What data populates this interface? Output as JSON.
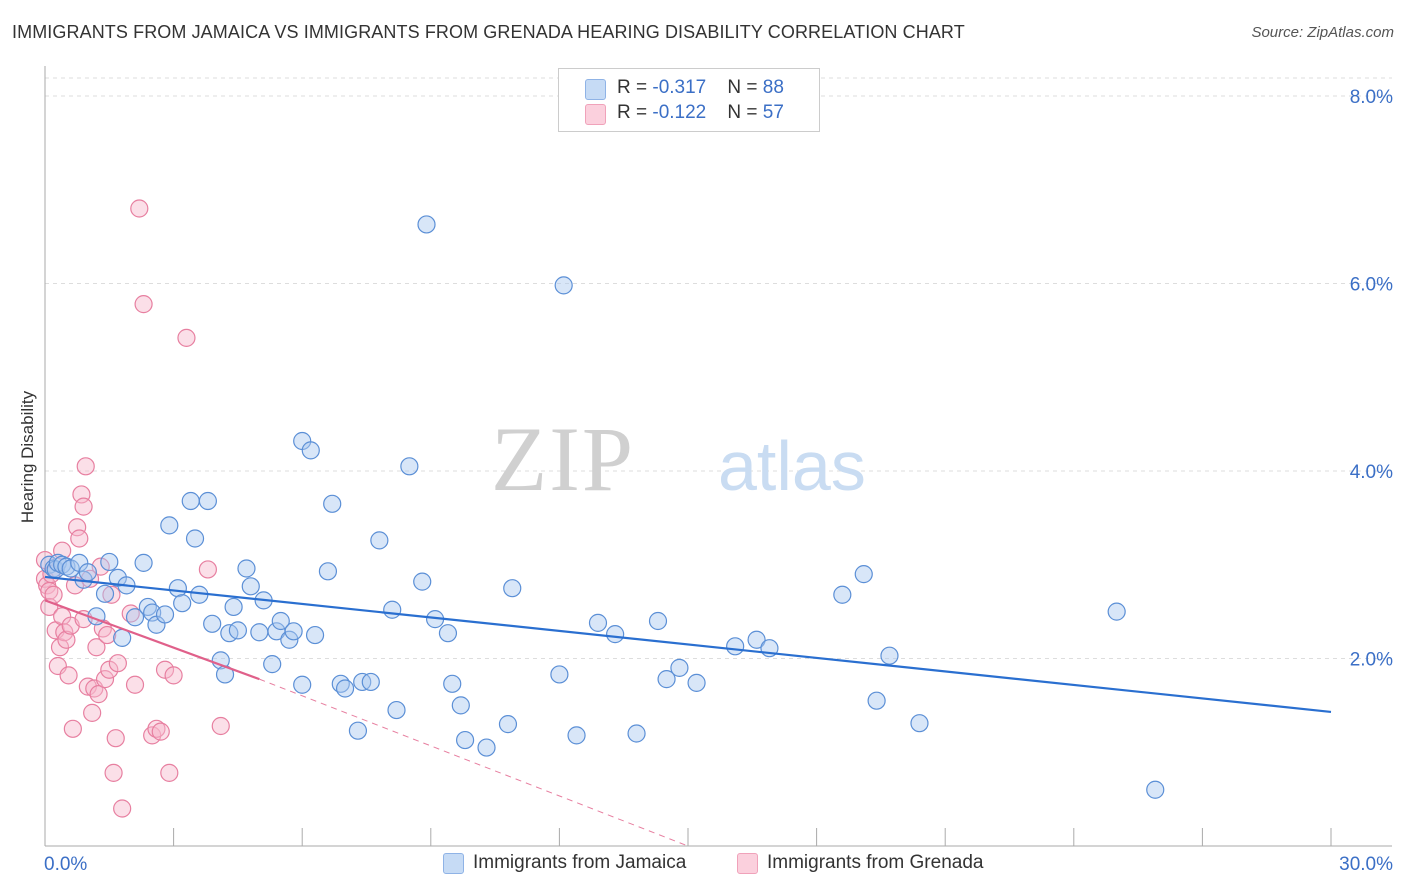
{
  "header": {
    "title": "IMMIGRANTS FROM JAMAICA VS IMMIGRANTS FROM GRENADA HEARING DISABILITY CORRELATION CHART",
    "source": "Source: ZipAtlas.com"
  },
  "watermark": {
    "part1": "ZIP",
    "part2": "atlas"
  },
  "legend": {
    "rows": [
      {
        "r_label": "R = ",
        "r_value": "-0.317",
        "n_label": "N = ",
        "n_value": "88",
        "color": "#a9c8f0"
      },
      {
        "r_label": "R = ",
        "r_value": "-0.122",
        "n_label": "N = ",
        "n_value": "57",
        "color": "#f7b9cb"
      }
    ]
  },
  "bottom_legend": {
    "jamaica": "Immigrants from Jamaica",
    "grenada": "Immigrants from Grenada"
  },
  "colors": {
    "jamaica_fill": "#a9c8f0",
    "jamaica_stroke": "#5b8fd6",
    "jamaica_line": "#2a6fd0",
    "grenada_fill": "#f7b9cb",
    "grenada_stroke": "#e77fa0",
    "grenada_line": "#e0608a",
    "tick_label": "#3b6fc6",
    "grid": "#dddddd"
  },
  "chart_data": {
    "type": "scatter",
    "title": "IMMIGRANTS FROM JAMAICA VS IMMIGRANTS FROM GRENADA HEARING DISABILITY CORRELATION CHART",
    "xlabel": "",
    "ylabel": "Hearing Disability",
    "xlim": [
      0,
      30
    ],
    "ylim": [
      0,
      8.0
    ],
    "x_tick_labels": [
      "0.0%",
      "30.0%"
    ],
    "y_ticks": [
      2.0,
      4.0,
      6.0,
      8.0
    ],
    "y_tick_labels": [
      "2.0%",
      "4.0%",
      "6.0%",
      "8.0%"
    ],
    "grid": "horizontal dashed",
    "legend_position": "top-center",
    "series": [
      {
        "name": "Immigrants from Jamaica",
        "R": -0.317,
        "N": 88,
        "trend": {
          "x": [
            0.0,
            30.0
          ],
          "y": [
            2.87,
            1.43
          ]
        },
        "points": [
          [
            0.1,
            3.0
          ],
          [
            0.2,
            2.96
          ],
          [
            0.25,
            2.95
          ],
          [
            0.3,
            3.02
          ],
          [
            0.4,
            3.0
          ],
          [
            0.5,
            2.98
          ],
          [
            0.6,
            2.96
          ],
          [
            0.8,
            3.02
          ],
          [
            0.9,
            2.84
          ],
          [
            1.0,
            2.92
          ],
          [
            1.2,
            2.45
          ],
          [
            1.4,
            2.69
          ],
          [
            1.5,
            3.03
          ],
          [
            1.7,
            2.86
          ],
          [
            1.8,
            2.22
          ],
          [
            1.9,
            2.78
          ],
          [
            2.1,
            2.44
          ],
          [
            2.3,
            3.02
          ],
          [
            2.4,
            2.55
          ],
          [
            2.5,
            2.49
          ],
          [
            2.6,
            2.36
          ],
          [
            2.8,
            2.47
          ],
          [
            2.9,
            3.42
          ],
          [
            3.1,
            2.75
          ],
          [
            3.2,
            2.59
          ],
          [
            3.4,
            3.68
          ],
          [
            3.5,
            3.28
          ],
          [
            3.6,
            2.68
          ],
          [
            3.8,
            3.68
          ],
          [
            3.9,
            2.37
          ],
          [
            4.1,
            1.98
          ],
          [
            4.2,
            1.83
          ],
          [
            4.3,
            2.27
          ],
          [
            4.4,
            2.55
          ],
          [
            4.5,
            2.3
          ],
          [
            4.7,
            2.96
          ],
          [
            4.8,
            2.77
          ],
          [
            5.0,
            2.28
          ],
          [
            5.1,
            2.62
          ],
          [
            5.3,
            1.94
          ],
          [
            5.4,
            2.29
          ],
          [
            5.5,
            2.4
          ],
          [
            5.7,
            2.2
          ],
          [
            5.8,
            2.29
          ],
          [
            6.0,
            1.72
          ],
          [
            6.0,
            4.32
          ],
          [
            6.2,
            4.22
          ],
          [
            6.3,
            2.25
          ],
          [
            6.6,
            2.93
          ],
          [
            6.7,
            3.65
          ],
          [
            6.9,
            1.73
          ],
          [
            7.0,
            1.68
          ],
          [
            7.3,
            1.23
          ],
          [
            7.4,
            1.75
          ],
          [
            7.6,
            1.75
          ],
          [
            7.8,
            3.26
          ],
          [
            8.1,
            2.52
          ],
          [
            8.2,
            1.45
          ],
          [
            8.5,
            4.05
          ],
          [
            8.8,
            2.82
          ],
          [
            8.9,
            6.63
          ],
          [
            9.1,
            2.42
          ],
          [
            9.4,
            2.27
          ],
          [
            9.5,
            1.73
          ],
          [
            9.7,
            1.5
          ],
          [
            9.8,
            1.13
          ],
          [
            10.3,
            1.05
          ],
          [
            10.8,
            1.3
          ],
          [
            10.9,
            2.75
          ],
          [
            12.0,
            1.83
          ],
          [
            12.1,
            5.98
          ],
          [
            12.4,
            1.18
          ],
          [
            12.9,
            2.38
          ],
          [
            13.3,
            2.26
          ],
          [
            13.8,
            1.2
          ],
          [
            14.3,
            2.4
          ],
          [
            14.5,
            1.78
          ],
          [
            14.8,
            1.9
          ],
          [
            15.2,
            1.74
          ],
          [
            16.1,
            2.13
          ],
          [
            16.6,
            2.2
          ],
          [
            16.9,
            2.11
          ],
          [
            18.6,
            2.68
          ],
          [
            19.1,
            2.9
          ],
          [
            19.4,
            1.55
          ],
          [
            19.7,
            2.03
          ],
          [
            20.4,
            1.31
          ],
          [
            25.0,
            2.5
          ],
          [
            25.9,
            0.6
          ]
        ]
      },
      {
        "name": "Immigrants from Grenada",
        "R": -0.122,
        "N": 57,
        "trend": {
          "x": [
            0.0,
            5.0
          ],
          "y": [
            2.62,
            1.78
          ],
          "dashed_x": [
            5.0,
            15.0
          ],
          "dashed_y": [
            1.78,
            0.0
          ]
        },
        "points": [
          [
            0.0,
            3.05
          ],
          [
            0.0,
            2.85
          ],
          [
            0.05,
            2.78
          ],
          [
            0.1,
            2.72
          ],
          [
            0.1,
            2.55
          ],
          [
            0.15,
            2.9
          ],
          [
            0.2,
            2.68
          ],
          [
            0.25,
            2.3
          ],
          [
            0.3,
            1.92
          ],
          [
            0.35,
            2.12
          ],
          [
            0.4,
            3.15
          ],
          [
            0.4,
            2.45
          ],
          [
            0.45,
            2.28
          ],
          [
            0.5,
            2.2
          ],
          [
            0.55,
            1.82
          ],
          [
            0.6,
            2.35
          ],
          [
            0.65,
            1.25
          ],
          [
            0.7,
            2.78
          ],
          [
            0.75,
            3.4
          ],
          [
            0.8,
            3.28
          ],
          [
            0.85,
            3.75
          ],
          [
            0.9,
            3.62
          ],
          [
            0.95,
            4.05
          ],
          [
            0.9,
            2.42
          ],
          [
            1.0,
            1.7
          ],
          [
            1.05,
            2.85
          ],
          [
            1.1,
            1.42
          ],
          [
            1.15,
            1.68
          ],
          [
            1.2,
            2.12
          ],
          [
            1.25,
            1.62
          ],
          [
            1.3,
            2.98
          ],
          [
            1.35,
            2.32
          ],
          [
            1.4,
            1.78
          ],
          [
            1.45,
            2.25
          ],
          [
            1.5,
            1.88
          ],
          [
            1.55,
            2.68
          ],
          [
            1.6,
            0.78
          ],
          [
            1.65,
            1.15
          ],
          [
            1.7,
            1.95
          ],
          [
            1.8,
            0.4
          ],
          [
            2.0,
            2.48
          ],
          [
            2.1,
            1.72
          ],
          [
            2.2,
            6.8
          ],
          [
            2.3,
            5.78
          ],
          [
            2.5,
            1.18
          ],
          [
            2.6,
            1.25
          ],
          [
            2.7,
            1.22
          ],
          [
            2.8,
            1.88
          ],
          [
            2.9,
            0.78
          ],
          [
            3.0,
            1.82
          ],
          [
            3.3,
            5.42
          ],
          [
            3.8,
            2.95
          ],
          [
            4.1,
            1.28
          ]
        ]
      }
    ]
  }
}
